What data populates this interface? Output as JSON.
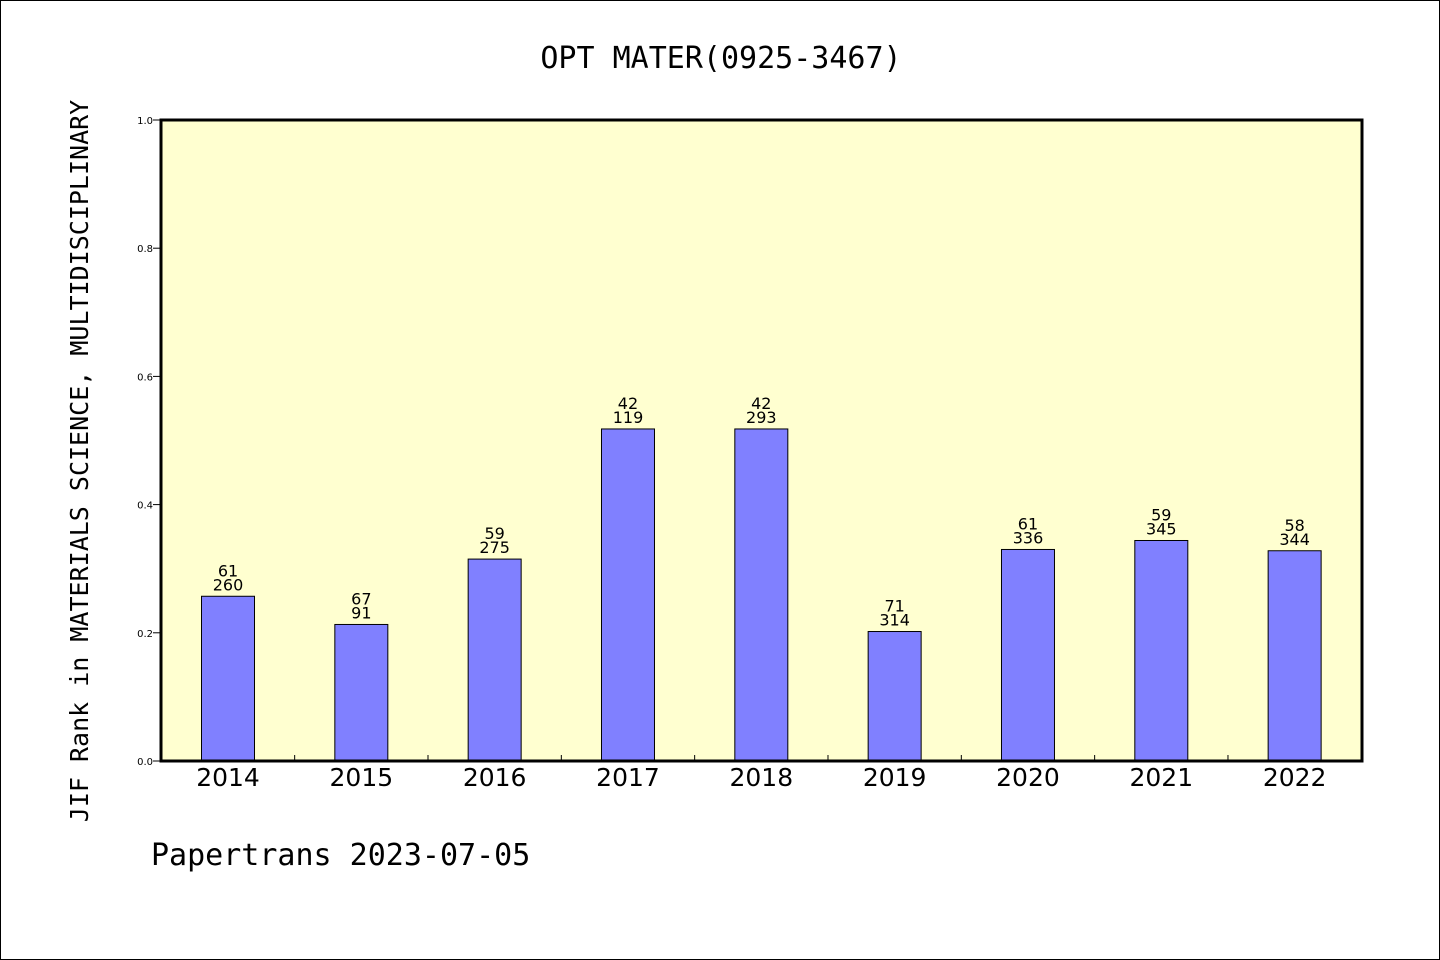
{
  "chart_data": {
    "type": "bar",
    "title": "OPT MATER(0925-3467)",
    "ylabel": "JIF Rank in MATERIALS SCIENCE, MULTIDISCIPLINARY",
    "xlabel": "",
    "categories": [
      "2014",
      "2015",
      "2016",
      "2017",
      "2018",
      "2019",
      "2020",
      "2021",
      "2022"
    ],
    "values": [
      0.257,
      0.213,
      0.315,
      0.518,
      0.518,
      0.202,
      0.33,
      0.344,
      0.328
    ],
    "label_top": [
      "61",
      "67",
      "59",
      "42",
      "42",
      "71",
      "61",
      "59",
      "58"
    ],
    "label_bottom": [
      "260",
      "91",
      "275",
      "119",
      "293",
      "314",
      "336",
      "345",
      "344"
    ],
    "ylim": [
      0,
      1.0
    ],
    "yticks": [
      "0.0",
      "0.2",
      "0.4",
      "0.6",
      "0.8",
      "1.0"
    ],
    "grid": false,
    "colors": {
      "bar": "#8080ff",
      "plot_background": "#ffffd0",
      "axes": "#000000"
    }
  },
  "footer": "Papertrans 2023-07-05"
}
